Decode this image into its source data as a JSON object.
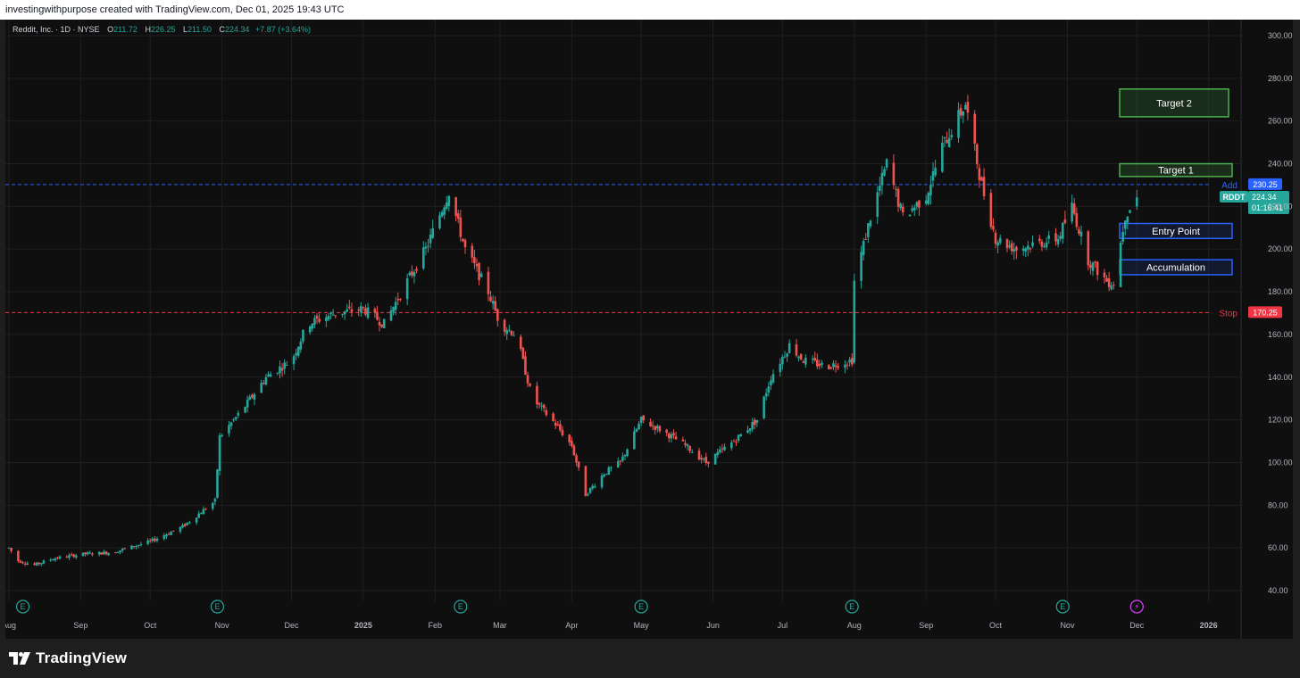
{
  "header": {
    "text": "investingwithpurpose created with TradingView.com, Dec 01, 2025 19:43 UTC"
  },
  "legend": {
    "symbol_info": "Reddit, Inc. · 1D · NYSE",
    "open_label": "O",
    "open": "211.72",
    "high_label": "H",
    "high": "226.25",
    "low_label": "L",
    "low": "211.50",
    "close_label": "C",
    "close": "224.34",
    "change": "+7.87 (+3.64%)"
  },
  "footer": {
    "brand": "TradingView"
  },
  "colors": {
    "up": "#26a69a",
    "down": "#ef5350",
    "background": "#0f0f0f",
    "grid": "#1f1f1f",
    "add_line": "#2962ff",
    "stop_line": "#f23645",
    "target_green": "#4caf50",
    "entry_blue": "#2962ff"
  },
  "chart_data": {
    "type": "candlestick",
    "title": "",
    "symbol": "RDDT",
    "ylim": [
      35,
      305
    ],
    "yticks": [
      "300.00",
      "280.00",
      "260.00",
      "240.00",
      "220.00",
      "200.00",
      "180.00",
      "160.00",
      "140.00",
      "120.00",
      "100.00",
      "80.00",
      "60.00",
      "40.00"
    ],
    "ytick_values": [
      300,
      280,
      260,
      240,
      220,
      200,
      180,
      160,
      140,
      120,
      100,
      80,
      60,
      40
    ],
    "x_range": [
      "2024-08-01",
      "2026-01-15"
    ],
    "xticks": [
      {
        "label": "Aug",
        "date": "2024-08-01"
      },
      {
        "label": "Sep",
        "date": "2024-09-01"
      },
      {
        "label": "Oct",
        "date": "2024-10-01"
      },
      {
        "label": "Nov",
        "date": "2024-11-01"
      },
      {
        "label": "Dec",
        "date": "2024-12-01"
      },
      {
        "label": "2025",
        "date": "2025-01-01"
      },
      {
        "label": "Feb",
        "date": "2025-02-01"
      },
      {
        "label": "Mar",
        "date": "2025-03-01"
      },
      {
        "label": "Apr",
        "date": "2025-04-01"
      },
      {
        "label": "May",
        "date": "2025-05-01"
      },
      {
        "label": "Jun",
        "date": "2025-06-01"
      },
      {
        "label": "Jul",
        "date": "2025-07-01"
      },
      {
        "label": "Aug",
        "date": "2025-08-01"
      },
      {
        "label": "Sep",
        "date": "2025-09-01"
      },
      {
        "label": "Oct",
        "date": "2025-10-01"
      },
      {
        "label": "Nov",
        "date": "2025-11-01"
      },
      {
        "label": "Dec",
        "date": "2025-12-01"
      },
      {
        "label": "2026",
        "date": "2026-01-01"
      }
    ],
    "earnings_dates": [
      "2024-08-07",
      "2024-10-30",
      "2025-02-12",
      "2025-05-01",
      "2025-07-31",
      "2025-10-30"
    ],
    "earnings_label": "E",
    "event_date": "2025-12-01",
    "event_label": "⚡",
    "price_path": [
      [
        "2024-08-01",
        60
      ],
      [
        "2024-08-05",
        54
      ],
      [
        "2024-08-12",
        52
      ],
      [
        "2024-08-20",
        55
      ],
      [
        "2024-09-01",
        57
      ],
      [
        "2024-09-15",
        58
      ],
      [
        "2024-10-01",
        63
      ],
      [
        "2024-10-15",
        70
      ],
      [
        "2024-10-29",
        82
      ],
      [
        "2024-10-31",
        112
      ],
      [
        "2024-11-10",
        125
      ],
      [
        "2024-11-20",
        140
      ],
      [
        "2024-12-01",
        148
      ],
      [
        "2024-12-08",
        165
      ],
      [
        "2024-12-20",
        170
      ],
      [
        "2025-01-01",
        172
      ],
      [
        "2025-01-10",
        165
      ],
      [
        "2025-01-20",
        185
      ],
      [
        "2025-01-28",
        200
      ],
      [
        "2025-02-07",
        227
      ],
      [
        "2025-02-14",
        200
      ],
      [
        "2025-02-24",
        180
      ],
      [
        "2025-03-01",
        165
      ],
      [
        "2025-03-08",
        160
      ],
      [
        "2025-03-15",
        130
      ],
      [
        "2025-03-25",
        118
      ],
      [
        "2025-04-01",
        108
      ],
      [
        "2025-04-07",
        85
      ],
      [
        "2025-04-15",
        95
      ],
      [
        "2025-04-22",
        100
      ],
      [
        "2025-05-01",
        120
      ],
      [
        "2025-05-10",
        115
      ],
      [
        "2025-05-20",
        108
      ],
      [
        "2025-05-29",
        100
      ],
      [
        "2025-06-10",
        110
      ],
      [
        "2025-06-20",
        120
      ],
      [
        "2025-06-26",
        140
      ],
      [
        "2025-07-04",
        155
      ],
      [
        "2025-07-10",
        148
      ],
      [
        "2025-07-20",
        145
      ],
      [
        "2025-07-31",
        148
      ],
      [
        "2025-08-01",
        185
      ],
      [
        "2025-08-08",
        215
      ],
      [
        "2025-08-15",
        240
      ],
      [
        "2025-08-22",
        215
      ],
      [
        "2025-09-01",
        225
      ],
      [
        "2025-09-08",
        248
      ],
      [
        "2025-09-18",
        268
      ],
      [
        "2025-09-25",
        230
      ],
      [
        "2025-10-01",
        205
      ],
      [
        "2025-10-10",
        200
      ],
      [
        "2025-10-20",
        203
      ],
      [
        "2025-10-28",
        205
      ],
      [
        "2025-11-03",
        220
      ],
      [
        "2025-11-10",
        195
      ],
      [
        "2025-11-18",
        185
      ],
      [
        "2025-11-21",
        184
      ],
      [
        "2025-11-26",
        216
      ],
      [
        "2025-12-01",
        224.34
      ]
    ],
    "annotations": {
      "lines": [
        {
          "label": "Add",
          "value": 230.25,
          "value_label": "230.25",
          "style": "dashed",
          "color": "#2962ff"
        },
        {
          "label": "Stop",
          "value": 170.25,
          "value_label": "170.25",
          "style": "dashed",
          "color": "#f23645"
        }
      ],
      "current_price": {
        "symbol": "RDDT",
        "value": 224.34,
        "value_label": "224.34",
        "countdown": "01:16:41"
      },
      "zones": [
        {
          "label": "Target 2",
          "low": 262,
          "high": 275,
          "style": "green"
        },
        {
          "label": "Target 1",
          "low": 234,
          "high": 240,
          "style": "green"
        },
        {
          "label": "Entry Point",
          "low": 205,
          "high": 212,
          "style": "blue"
        },
        {
          "label": "Accumulation",
          "low": 188,
          "high": 195,
          "style": "blue"
        }
      ]
    }
  }
}
